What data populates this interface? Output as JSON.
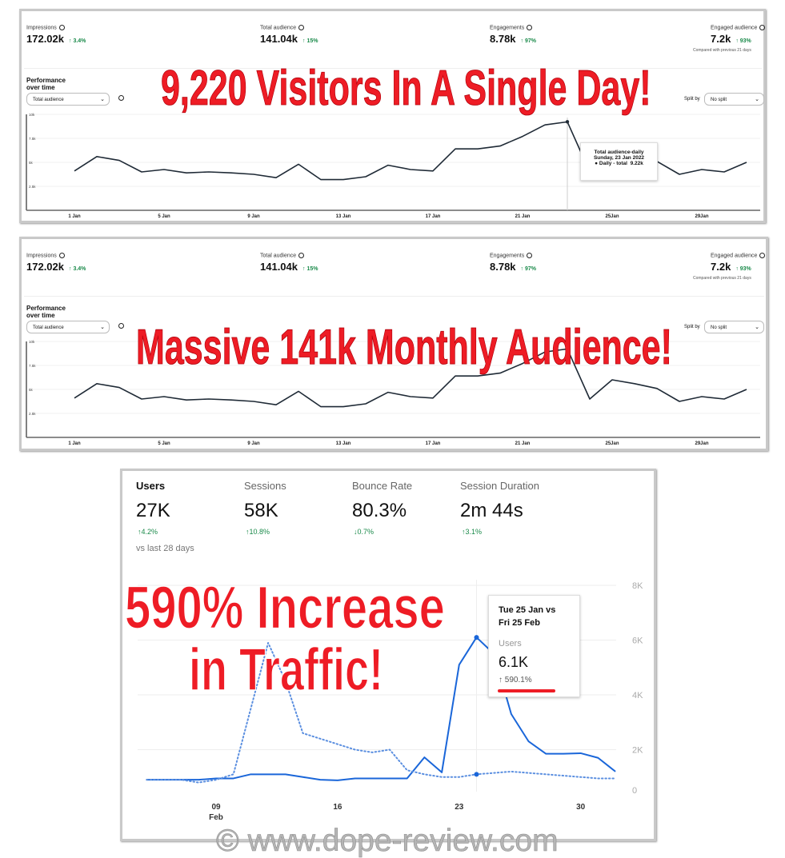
{
  "panels": [
    {
      "metrics": [
        {
          "label": "Impressions",
          "value": "172.02k",
          "delta": "3.4%"
        },
        {
          "label": "Total audience",
          "value": "141.04k",
          "delta": "15%"
        },
        {
          "label": "Engagements",
          "value": "8.78k",
          "delta": "97%"
        },
        {
          "label": "Engaged audience",
          "value": "7.2k",
          "delta": "93%"
        }
      ],
      "compared_note": "Compared with previous 21 days",
      "section_title": "Performance over time",
      "metric_select": "Total audience",
      "split_label": "Split by",
      "split_select": "No split",
      "tooltip": {
        "title": "Total audience-daily",
        "date": "Sunday, 23 Jan 2022",
        "series": "Daily - total",
        "value": "9.22k"
      },
      "overlay": "9,220 Visitors In A Single Day!"
    },
    {
      "metrics": [
        {
          "label": "Impressions",
          "value": "172.02k",
          "delta": "3.4%"
        },
        {
          "label": "Total audience",
          "value": "141.04k",
          "delta": "15%"
        },
        {
          "label": "Engagements",
          "value": "8.78k",
          "delta": "97%"
        },
        {
          "label": "Engaged audience",
          "value": "7.2k",
          "delta": "93%"
        }
      ],
      "compared_note": "Compared with previous 21 days",
      "section_title": "Performance over time",
      "metric_select": "Total audience",
      "split_label": "Split by",
      "split_select": "No split",
      "overlay": "Massive 141k Monthly Audience!"
    }
  ],
  "ga": {
    "metrics": [
      {
        "label": "Users",
        "value": "27K",
        "delta": "↑4.2%",
        "dir": "up"
      },
      {
        "label": "Sessions",
        "value": "58K",
        "delta": "↑10.8%",
        "dir": "up"
      },
      {
        "label": "Bounce Rate",
        "value": "80.3%",
        "delta": "↓0.7%",
        "dir": "down"
      },
      {
        "label": "Session Duration",
        "value": "2m 44s",
        "delta": "↑3.1%",
        "dir": "up"
      }
    ],
    "comparison": "vs last 28 days",
    "tooltip": {
      "line1": "Tue 25 Jan vs",
      "line2": "Fri 25 Feb",
      "metric": "Users",
      "value": "6.1K",
      "change": "↑ 590.1%"
    },
    "overlay_line1": "590% Increase",
    "overlay_line2": "in Traffic!"
  },
  "watermark": "© www.dope-review.com",
  "colors": {
    "overlay_red": "#ee1c25",
    "line_dark": "#1f2a36",
    "ga_blue": "#1a66d9",
    "positive": "#1a8a4a"
  },
  "chart_data": [
    {
      "type": "line",
      "x": [
        1,
        2,
        3,
        4,
        5,
        6,
        7,
        8,
        9,
        10,
        11,
        12,
        13,
        14,
        15,
        16,
        17,
        18,
        19,
        20,
        21,
        22,
        23,
        24,
        25,
        26,
        27,
        28,
        29,
        30,
        31
      ],
      "values": [
        4.1,
        5.6,
        5.2,
        4.0,
        4.25,
        3.9,
        4.0,
        3.9,
        3.75,
        3.4,
        4.8,
        3.2,
        3.2,
        3.5,
        4.7,
        4.25,
        4.1,
        6.4,
        6.4,
        6.7,
        7.7,
        8.9,
        9.22,
        4.0,
        6.0,
        5.6,
        5.1,
        3.75,
        4.25,
        4.0,
        5.0
      ],
      "unit": "k",
      "x_ticks": [
        1,
        5,
        9,
        13,
        17,
        21,
        25,
        29
      ],
      "x_tick_labels": [
        "1 Jan",
        "5 Jan",
        "9 Jan",
        "13 Jan",
        "17 Jan",
        "21 Jan",
        "25Jan",
        "29Jan"
      ],
      "y_tick_labels": [
        "10k",
        "7.5k",
        "5k",
        "2.5k"
      ],
      "y_ticks": [
        10,
        7.5,
        5,
        2.5
      ],
      "ylim": [
        0,
        10
      ],
      "highlight_x": 23,
      "grid": true
    },
    {
      "type": "line",
      "x": [
        1,
        2,
        3,
        4,
        5,
        6,
        7,
        8,
        9,
        10,
        11,
        12,
        13,
        14,
        15,
        16,
        17,
        18,
        19,
        20,
        21,
        22,
        23,
        24,
        25,
        26,
        27,
        28,
        29,
        30,
        31
      ],
      "values": [
        4.1,
        5.6,
        5.2,
        4.0,
        4.25,
        3.9,
        4.0,
        3.9,
        3.75,
        3.4,
        4.8,
        3.2,
        3.2,
        3.5,
        4.7,
        4.25,
        4.1,
        6.4,
        6.4,
        6.7,
        7.7,
        8.9,
        9.22,
        4.0,
        6.0,
        5.6,
        5.1,
        3.75,
        4.25,
        4.0,
        5.0
      ],
      "unit": "k",
      "x_ticks": [
        1,
        5,
        9,
        13,
        17,
        21,
        25,
        29
      ],
      "x_tick_labels": [
        "1 Jan",
        "5 Jan",
        "9 Jan",
        "13 Jan",
        "17 Jan",
        "21 Jan",
        "25Jan",
        "29Jan"
      ],
      "y_tick_labels": [
        "10k",
        "7.5k",
        "5k",
        "2.5k"
      ],
      "y_ticks": [
        10,
        7.5,
        5,
        2.5
      ],
      "ylim": [
        0,
        10
      ],
      "grid": true
    },
    {
      "type": "line",
      "x": [
        5,
        6,
        7,
        8,
        9,
        10,
        11,
        12,
        13,
        14,
        15,
        16,
        17,
        18,
        19,
        20,
        21,
        22,
        23,
        24,
        25,
        26,
        27,
        28,
        29,
        30,
        31,
        32
      ],
      "series": [
        {
          "style": "solid",
          "values": [
            0.9,
            0.9,
            0.9,
            0.9,
            0.95,
            0.95,
            1.1,
            1.1,
            1.1,
            1.0,
            0.9,
            0.88,
            0.95,
            0.95,
            0.95,
            0.95,
            1.72,
            1.17,
            5.1,
            6.1,
            5.5,
            3.3,
            2.3,
            1.85,
            1.85,
            1.87,
            1.7,
            1.2
          ]
        },
        {
          "style": "dotted",
          "values": [
            0.9,
            0.9,
            0.9,
            0.8,
            0.9,
            1.1,
            3.5,
            5.9,
            4.5,
            2.6,
            2.4,
            2.2,
            2.0,
            1.9,
            2.0,
            1.25,
            1.1,
            1.0,
            1.0,
            1.1,
            1.15,
            1.2,
            1.15,
            1.1,
            1.05,
            1.0,
            0.95,
            0.95
          ]
        }
      ],
      "unit": "K",
      "x_ticks": [
        9,
        16,
        23,
        30
      ],
      "x_tick_labels": [
        "09",
        "16",
        "23",
        "30"
      ],
      "x_sublabel": "Feb",
      "y_ticks": [
        0,
        2,
        4,
        6,
        8
      ],
      "y_tick_labels": [
        "0",
        "2K",
        "4K",
        "6K",
        "8K"
      ],
      "ylim": [
        0,
        8
      ],
      "highlight_x": 24,
      "grid": true
    }
  ]
}
